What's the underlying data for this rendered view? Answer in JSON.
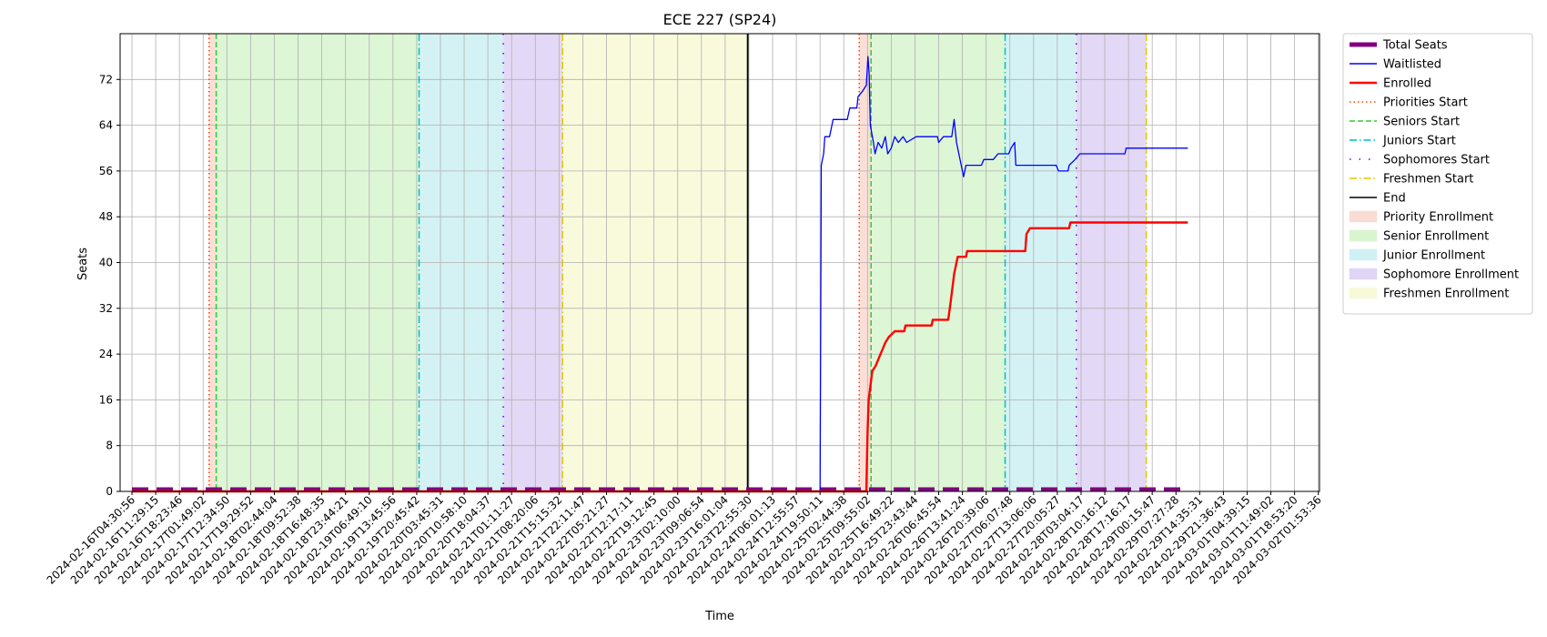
{
  "chart_data": {
    "type": "line",
    "title": "ECE 227 (SP24)",
    "xlabel": "Time",
    "ylabel": "Seats",
    "ylim": [
      0,
      80
    ],
    "yticks": [
      0,
      8,
      16,
      24,
      32,
      40,
      48,
      56,
      64,
      72
    ],
    "grid": true,
    "legend_position": "outside-right",
    "x_tick_labels": [
      "2024-02-16T04:30:56",
      "2024-02-16T11:29:15",
      "2024-02-16T18:23:46",
      "2024-02-17T01:49:02",
      "2024-02-17T12:34:50",
      "2024-02-17T19:29:52",
      "2024-02-18T02:44:04",
      "2024-02-18T09:52:38",
      "2024-02-18T16:48:35",
      "2024-02-18T23:44:21",
      "2024-02-19T06:49:10",
      "2024-02-19T13:45:56",
      "2024-02-19T20:45:42",
      "2024-02-20T03:45:31",
      "2024-02-20T10:58:10",
      "2024-02-20T18:04:37",
      "2024-02-21T01:11:27",
      "2024-02-21T08:20:06",
      "2024-02-21T15:15:32",
      "2024-02-21T22:11:47",
      "2024-02-22T05:21:27",
      "2024-02-22T12:17:11",
      "2024-02-22T19:12:45",
      "2024-02-23T02:10:00",
      "2024-02-23T09:06:54",
      "2024-02-23T16:01:04",
      "2024-02-23T22:55:30",
      "2024-02-24T06:01:13",
      "2024-02-24T12:55:57",
      "2024-02-24T19:50:11",
      "2024-02-25T02:44:38",
      "2024-02-25T09:55:02",
      "2024-02-25T16:49:22",
      "2024-02-25T23:43:44",
      "2024-02-26T06:45:54",
      "2024-02-26T13:41:24",
      "2024-02-26T20:39:06",
      "2024-02-27T06:07:48",
      "2024-02-27T13:06:06",
      "2024-02-27T20:05:27",
      "2024-02-28T03:04:17",
      "2024-02-28T10:16:12",
      "2024-02-28T17:16:17",
      "2024-02-29T00:15:47",
      "2024-02-29T07:27:28",
      "2024-02-29T14:35:31",
      "2024-02-29T21:36:43",
      "2024-03-01T04:39:15",
      "2024-03-01T11:49:02",
      "2024-03-01T18:53:20",
      "2024-03-02T01:53:36"
    ],
    "phase_bands": [
      {
        "phase": "Priority Enrollment",
        "start": 3.25,
        "end": 3.55
      },
      {
        "phase": "Senior Enrollment",
        "start": 3.55,
        "end": 12.1
      },
      {
        "phase": "Junior Enrollment",
        "start": 12.1,
        "end": 15.65
      },
      {
        "phase": "Sophomore Enrollment",
        "start": 15.65,
        "end": 18.15
      },
      {
        "phase": "Freshmen Enrollment",
        "start": 18.15,
        "end": 25.95
      },
      {
        "phase": "Priority Enrollment",
        "start": 30.65,
        "end": 31.15
      },
      {
        "phase": "Senior Enrollment",
        "start": 31.15,
        "end": 36.8
      },
      {
        "phase": "Junior Enrollment",
        "start": 36.8,
        "end": 39.8
      },
      {
        "phase": "Sophomore Enrollment",
        "start": 39.8,
        "end": 42.75
      }
    ],
    "phase_markers": [
      {
        "marker": "Priorities Start",
        "x": 3.25
      },
      {
        "marker": "Seniors Start",
        "x": 3.55
      },
      {
        "marker": "Juniors Start",
        "x": 12.1
      },
      {
        "marker": "Sophomores Start",
        "x": 15.65
      },
      {
        "marker": "Freshmen Start",
        "x": 18.15
      },
      {
        "marker": "End",
        "x": 25.95
      },
      {
        "marker": "Priorities Start",
        "x": 30.65
      },
      {
        "marker": "Seniors Start",
        "x": 31.15
      },
      {
        "marker": "Juniors Start",
        "x": 36.8
      },
      {
        "marker": "Sophomores Start",
        "x": 39.8
      },
      {
        "marker": "Freshmen Start",
        "x": 42.75
      }
    ],
    "series": [
      {
        "name": "Total Seats",
        "points": [
          [
            0,
            0.4
          ],
          [
            44.5,
            0.4
          ]
        ]
      },
      {
        "name": "Waitlisted",
        "points": [
          [
            0,
            0
          ],
          [
            29.0,
            0
          ],
          [
            29.05,
            57
          ],
          [
            29.15,
            59
          ],
          [
            29.2,
            62
          ],
          [
            29.4,
            62
          ],
          [
            29.55,
            65
          ],
          [
            30.15,
            65
          ],
          [
            30.25,
            67
          ],
          [
            30.55,
            67
          ],
          [
            30.6,
            69
          ],
          [
            30.8,
            70
          ],
          [
            30.95,
            71
          ],
          [
            31.02,
            76
          ],
          [
            31.07,
            73
          ],
          [
            31.12,
            64
          ],
          [
            31.25,
            61
          ],
          [
            31.32,
            59
          ],
          [
            31.45,
            61
          ],
          [
            31.6,
            60
          ],
          [
            31.75,
            62
          ],
          [
            31.85,
            59
          ],
          [
            32.0,
            60
          ],
          [
            32.15,
            62
          ],
          [
            32.3,
            61
          ],
          [
            32.5,
            62
          ],
          [
            32.65,
            61
          ],
          [
            33.05,
            62
          ],
          [
            33.95,
            62
          ],
          [
            34.0,
            61
          ],
          [
            34.2,
            62
          ],
          [
            34.55,
            62
          ],
          [
            34.65,
            65
          ],
          [
            34.75,
            61
          ],
          [
            34.95,
            57
          ],
          [
            35.05,
            55
          ],
          [
            35.15,
            57
          ],
          [
            35.8,
            57
          ],
          [
            35.9,
            58
          ],
          [
            36.3,
            58
          ],
          [
            36.5,
            59
          ],
          [
            36.95,
            59
          ],
          [
            37.05,
            60
          ],
          [
            37.2,
            61
          ],
          [
            37.25,
            57
          ],
          [
            38.0,
            57
          ],
          [
            38.95,
            57
          ],
          [
            39.05,
            56
          ],
          [
            39.45,
            56
          ],
          [
            39.5,
            57
          ],
          [
            39.75,
            58
          ],
          [
            39.95,
            59
          ],
          [
            41.85,
            59
          ],
          [
            41.9,
            60
          ],
          [
            44.5,
            60
          ]
        ]
      },
      {
        "name": "Enrolled",
        "points": [
          [
            0,
            0
          ],
          [
            30.95,
            0
          ],
          [
            31.0,
            10
          ],
          [
            31.05,
            16
          ],
          [
            31.2,
            21
          ],
          [
            31.35,
            22
          ],
          [
            31.55,
            24
          ],
          [
            31.65,
            25
          ],
          [
            31.75,
            26
          ],
          [
            31.9,
            27
          ],
          [
            32.15,
            28
          ],
          [
            32.55,
            28
          ],
          [
            32.6,
            29
          ],
          [
            33.7,
            29
          ],
          [
            33.75,
            30
          ],
          [
            34.4,
            30
          ],
          [
            34.5,
            33
          ],
          [
            34.65,
            38
          ],
          [
            34.8,
            41
          ],
          [
            35.15,
            41
          ],
          [
            35.2,
            42
          ],
          [
            37.65,
            42
          ],
          [
            37.7,
            45
          ],
          [
            37.85,
            46
          ],
          [
            39.5,
            46
          ],
          [
            39.55,
            47
          ],
          [
            44.5,
            47
          ]
        ]
      }
    ],
    "legend": [
      {
        "label": "Total Seats",
        "kind": "thick-line",
        "color": "#800080"
      },
      {
        "label": "Waitlisted",
        "kind": "line",
        "color": "#0000ff"
      },
      {
        "label": "Enrolled",
        "kind": "line",
        "color": "#ff0000"
      },
      {
        "label": "Priorities Start",
        "kind": "dotted",
        "color": "#ff4500"
      },
      {
        "label": "Seniors Start",
        "kind": "dashed",
        "color": "#32cd32"
      },
      {
        "label": "Juniors Start",
        "kind": "dashdot",
        "color": "#00bfc4"
      },
      {
        "label": "Sophomores Start",
        "kind": "loose-dashdot",
        "color": "#7000d0"
      },
      {
        "label": "Freshmen Start",
        "kind": "dashdot",
        "color": "#e0c800"
      },
      {
        "label": "End",
        "kind": "line",
        "color": "#000000"
      },
      {
        "label": "Priority Enrollment",
        "kind": "patch",
        "color": "#f9dcd4"
      },
      {
        "label": "Senior Enrollment",
        "kind": "patch",
        "color": "#d9f5d0"
      },
      {
        "label": "Junior Enrollment",
        "kind": "patch",
        "color": "#cff1f3"
      },
      {
        "label": "Sophomore Enrollment",
        "kind": "patch",
        "color": "#e0d5f5"
      },
      {
        "label": "Freshmen Enrollment",
        "kind": "patch",
        "color": "#f8f9d8"
      }
    ],
    "colors": {
      "total_seats": "#800080",
      "waitlisted": "#0000ff",
      "enrolled": "#ff0000",
      "grid": "#b0b0b0"
    }
  }
}
